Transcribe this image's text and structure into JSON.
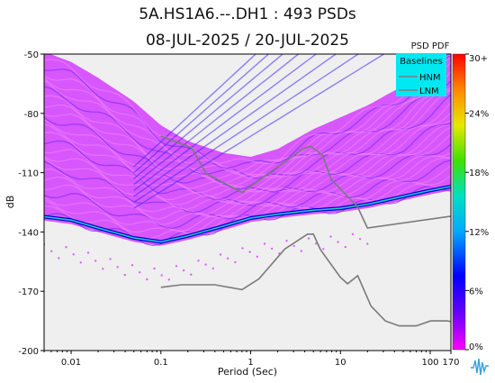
{
  "title": "5A.HS1A6.--.DH1 : 493 PSDs",
  "subtitle": "08-JUL-2025 / 20-JUL-2025",
  "chart_data": {
    "type": "heatmap",
    "xlabel": "Period (Sec)",
    "ylabel": "dB",
    "x_scale": "log",
    "xlim": [
      0.005,
      170
    ],
    "ylim": [
      -200,
      -50
    ],
    "x_ticks": [
      "0.01",
      "0.1",
      "1",
      "10",
      "100",
      "170"
    ],
    "x_tick_values": [
      0.01,
      0.1,
      1,
      10,
      100,
      170
    ],
    "y_ticks": [
      "-50",
      "-80",
      "-110",
      "-140",
      "-170",
      "-200"
    ],
    "y_tick_values": [
      -50,
      -80,
      -110,
      -140,
      -170,
      -200
    ],
    "colorbar": {
      "title": "PSD PDF",
      "labels": [
        "30+",
        "24%",
        "18%",
        "12%",
        "6%",
        "0%"
      ],
      "range": [
        0,
        30
      ],
      "colors": [
        "#ff00ff",
        "#6a00ff",
        "#0000ff",
        "#00aaff",
        "#00e0c0",
        "#40e000",
        "#e8e800",
        "#ff8800",
        "#ff0000"
      ]
    },
    "legend": {
      "title": "Baselines",
      "entries": [
        "HNM",
        "LNM"
      ],
      "position": "top-right"
    },
    "series": [
      {
        "name": "HNM",
        "x": [
          0.1,
          0.22,
          0.32,
          0.8,
          3.8,
          4.6,
          6.3,
          7.9,
          15.4,
          20,
          354.8
        ],
        "y": [
          -91.5,
          -97.4,
          -110.5,
          -120.0,
          -98.0,
          -96.5,
          -101.0,
          -113.5,
          -127.0,
          -138.0,
          -130.0
        ]
      },
      {
        "name": "LNM",
        "x": [
          0.1,
          0.17,
          0.4,
          0.8,
          1.24,
          2.4,
          4.3,
          5.0,
          6.0,
          10.0,
          12.0,
          15.6,
          21.9,
          31.6,
          45.0,
          70.0,
          101.0,
          154.0,
          328.0,
          600.0
        ],
        "y": [
          -168.0,
          -166.7,
          -166.7,
          -169.2,
          -163.7,
          -148.6,
          -141.1,
          -141.1,
          -149.0,
          -163.0,
          -166.2,
          -162.1,
          -177.5,
          -185.0,
          -187.5,
          -187.5,
          -185.0,
          -185.0,
          -187.5,
          -187.5
        ]
      }
    ],
    "density_ridges": [
      {
        "name": "floor",
        "x": [
          0.0045,
          0.01,
          0.02,
          0.05,
          0.1,
          0.2,
          0.5,
          1,
          2,
          5,
          10,
          20,
          50,
          100,
          170
        ],
        "y": [
          -132,
          -134,
          -138,
          -143,
          -145,
          -142,
          -137,
          -133,
          -131,
          -129,
          -128,
          -126,
          -122,
          -119,
          -117
        ]
      },
      {
        "name": "upper",
        "x": [
          0.0045,
          0.01,
          0.02,
          0.05,
          0.1,
          0.2,
          0.5,
          1,
          2,
          5,
          10,
          20,
          50,
          100,
          170
        ],
        "y": [
          -62,
          -68,
          -76,
          -88,
          -100,
          -108,
          -114,
          -116,
          -112,
          -102,
          -96,
          -90,
          -80,
          -68,
          -58
        ]
      }
    ]
  }
}
